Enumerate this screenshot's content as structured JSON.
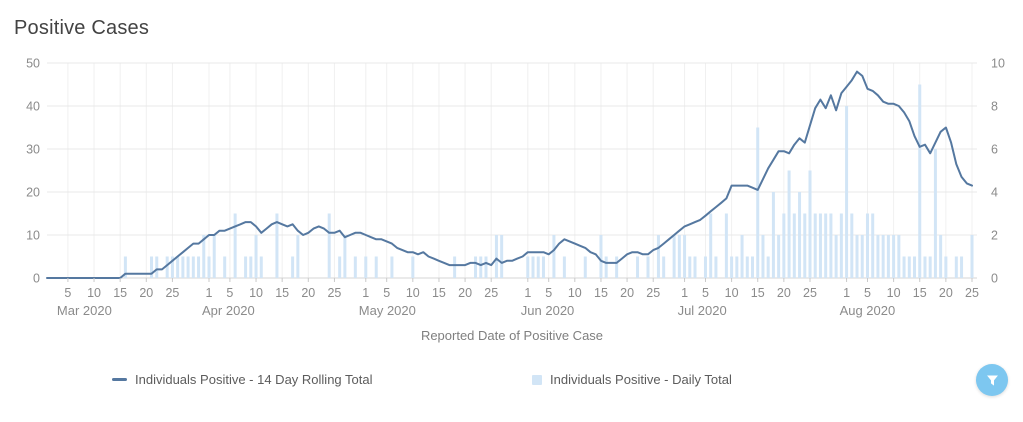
{
  "header": {
    "title": "Positive Cases"
  },
  "x_axis": {
    "title": "Reported Date of Positive Case",
    "months": [
      {
        "label": "Mar 2020",
        "month": 3,
        "days": [
          5,
          10,
          15,
          20,
          25
        ]
      },
      {
        "label": "Apr 2020",
        "month": 4,
        "days": [
          1,
          5,
          10,
          15,
          20,
          25
        ]
      },
      {
        "label": "May 2020",
        "month": 5,
        "days": [
          1,
          5,
          10,
          15,
          20,
          25
        ]
      },
      {
        "label": "Jun 2020",
        "month": 6,
        "days": [
          1,
          5,
          10,
          15,
          20,
          25
        ]
      },
      {
        "label": "Jul 2020",
        "month": 7,
        "days": [
          1,
          5,
          10,
          15,
          20,
          25
        ]
      },
      {
        "label": "Aug 2020",
        "month": 8,
        "days": [
          1,
          5,
          10,
          15,
          20,
          25
        ]
      }
    ]
  },
  "y_axis_left": {
    "ticks": [
      0,
      10,
      20,
      30,
      40,
      50
    ],
    "min": 0,
    "max": 50
  },
  "y_axis_right": {
    "ticks": [
      0,
      2,
      4,
      6,
      8,
      10
    ],
    "min": 0,
    "max": 10
  },
  "legend": {
    "items": [
      {
        "label": "Individuals Positive - 14 Day Rolling Total",
        "marker": "line",
        "color": "#5578a0"
      },
      {
        "label": "Individuals Positive - Daily Total",
        "marker": "square",
        "color": "#d2e5f6"
      }
    ]
  },
  "filter_button": {
    "icon": "funnel-icon",
    "background": "#7dc7f0",
    "glyph_color": "#ffffff"
  },
  "colors": {
    "line": "#5578a0",
    "bar": "#d2e5f6",
    "grid": "#e8e8e8",
    "grid_vertical": "#f0f0f0",
    "axis": "#d5d5d5",
    "tick_text": "#8b8b8b",
    "title_text": "#434343"
  },
  "chart_data": {
    "type": "line",
    "note": "combo chart: 14-day rolling total line (left axis) + daily total bars (right axis)",
    "start_date": "2020-03-01",
    "end_date": "2020-08-25",
    "title": "Positive Cases",
    "xlabel": "Reported Date of Positive Case",
    "ylim_left": [
      0,
      50
    ],
    "ylim_right": [
      0,
      10
    ],
    "grid": true,
    "legend_position": "bottom",
    "series": [
      {
        "name": "Individuals Positive - 14 Day Rolling Total",
        "type": "line",
        "axis": "left",
        "color": "#5578a0",
        "values": [
          0,
          0,
          0,
          0,
          0,
          0,
          0,
          0,
          0,
          0,
          0,
          0,
          0,
          0,
          0,
          1,
          1,
          1,
          1,
          1,
          1,
          2,
          2,
          3,
          4,
          5,
          6,
          7,
          8,
          8,
          9,
          10,
          10,
          11,
          11,
          11.5,
          12,
          12.5,
          13,
          13,
          12,
          10.5,
          11.5,
          12.5,
          13,
          12.5,
          12,
          12.5,
          11,
          10,
          10.5,
          11.5,
          12,
          11.5,
          10.5,
          10.5,
          11,
          9.5,
          10,
          10.5,
          10.5,
          10,
          9.5,
          9,
          9,
          8.5,
          8,
          7,
          6.5,
          6,
          6,
          5.5,
          6,
          5,
          4.5,
          4,
          3.5,
          3,
          3,
          3,
          3,
          3.5,
          3.5,
          3,
          3.5,
          3,
          4.5,
          3.5,
          4,
          4,
          4.5,
          5,
          6,
          6,
          6,
          6,
          5.5,
          6.5,
          8,
          9,
          8.5,
          8,
          7.5,
          7,
          6,
          5.5,
          4,
          3.5,
          3.5,
          3.5,
          4.5,
          5.5,
          6,
          6,
          5.5,
          5.5,
          6.5,
          7,
          8,
          9,
          10,
          11,
          12,
          12.5,
          13,
          13.5,
          14.5,
          15.5,
          16.5,
          17.5,
          18.5,
          21.5,
          21.5,
          21.5,
          21.5,
          21,
          20.5,
          23,
          25.5,
          27.5,
          29.5,
          29.5,
          29,
          31,
          32.5,
          31.5,
          35.5,
          39.5,
          41.5,
          39.5,
          42.5,
          39,
          43,
          44.5,
          46,
          48,
          47,
          44,
          43.5,
          42.5,
          41,
          40.5,
          40.5,
          40,
          38.5,
          36.5,
          33,
          30.5,
          31,
          29,
          31.5,
          34,
          35,
          31.5,
          26.5,
          23.5,
          22,
          21.5
        ]
      },
      {
        "name": "Individuals Positive - Daily Total",
        "type": "bar",
        "axis": "right",
        "color": "#d2e5f6",
        "values": [
          0,
          0,
          0,
          0,
          0,
          0,
          0,
          0,
          0,
          0,
          0,
          0,
          0,
          0,
          0,
          1,
          0,
          0,
          0,
          0,
          1,
          1,
          0,
          1,
          1,
          1,
          1,
          1,
          1,
          1,
          2,
          1,
          2,
          0,
          1,
          0,
          3,
          0,
          1,
          1,
          2,
          1,
          0,
          0,
          3,
          0,
          0,
          1,
          2,
          0,
          0,
          0,
          0,
          0,
          3,
          0,
          1,
          2,
          0,
          1,
          0,
          1,
          0,
          1,
          0,
          0,
          1,
          0,
          0,
          0,
          1,
          0,
          0,
          0,
          0,
          0,
          0,
          0,
          1,
          0,
          0,
          0,
          1,
          1,
          1,
          0,
          2,
          2,
          0,
          0,
          0,
          0,
          1,
          1,
          1,
          1,
          0,
          2,
          0,
          1,
          0,
          0,
          0,
          1,
          0,
          0,
          2,
          1,
          0,
          1,
          0,
          0,
          0,
          1,
          0,
          1,
          0,
          2,
          1,
          0,
          2,
          2,
          2,
          1,
          1,
          0,
          1,
          3,
          1,
          0,
          3,
          1,
          1,
          2,
          1,
          1,
          7,
          2,
          1,
          4,
          2,
          3,
          5,
          3,
          4,
          3,
          5,
          3,
          3,
          3,
          3,
          2,
          3,
          8,
          3,
          2,
          2,
          3,
          3,
          2,
          2,
          2,
          2,
          2,
          1,
          1,
          1,
          9,
          1,
          1,
          6,
          2,
          1,
          0,
          1,
          1,
          0,
          2
        ]
      }
    ]
  }
}
